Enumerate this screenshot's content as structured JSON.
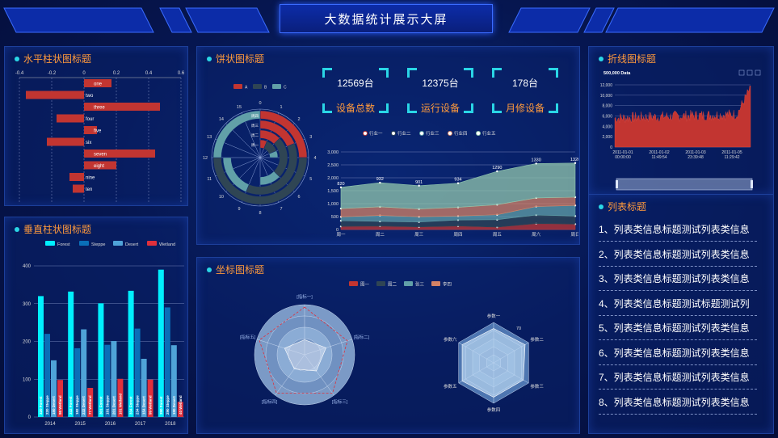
{
  "header": {
    "title": "大数据统计展示大屏"
  },
  "panels": {
    "hbar_title": "水平柱状图标题",
    "vbar_title": "垂直柱状图标题",
    "pie_title": "饼状图标题",
    "coord_title": "坐标图标题",
    "line_title": "折线图标题",
    "list_title": "列表标题"
  },
  "stats": [
    {
      "value": "12569台",
      "label": "设备总数"
    },
    {
      "value": "12375台",
      "label": "运行设备"
    },
    {
      "value": "178台",
      "label": "月修设备"
    }
  ],
  "list_items": [
    "1、列表类信息标题测试列表类信息",
    "2、列表类信息标题测试列表类信息",
    "3、列表类信息标题测试列表类信息",
    "4、列表类信息标题测试标题测试列",
    "5、列表类信息标题测试列表类信息",
    "6、列表类信息标题测试列表类信息",
    "7、列表类信息标题测试列表类信息",
    "8、列表类信息标题测试列表类信息"
  ],
  "chart_data": [
    {
      "id": "hbar",
      "type": "bar",
      "orientation": "horizontal",
      "categories": [
        "one",
        "two",
        "three",
        "four",
        "five",
        "six",
        "seven",
        "eight",
        "nine",
        "ten"
      ],
      "values": [
        0.17,
        -0.36,
        0.47,
        -0.17,
        0.08,
        -0.23,
        0.44,
        0.2,
        -0.09,
        -0.07
      ],
      "xticks": [
        "-0.4",
        "-0.2",
        "0",
        "0.2",
        "0.4",
        "0.6"
      ],
      "xlim": [
        -0.4,
        0.6
      ],
      "bar_color": "#c23531"
    },
    {
      "id": "vbar",
      "type": "bar",
      "categories": [
        "2014",
        "2015",
        "2016",
        "2017",
        "2018"
      ],
      "series": [
        {
          "name": "Forest",
          "values": [
            320,
            332,
            301,
            334,
            390
          ],
          "color": "#00f0ff"
        },
        {
          "name": "Steppe",
          "values": [
            220,
            182,
            191,
            234,
            290
          ],
          "color": "#0a6fb8"
        },
        {
          "name": "Desert",
          "values": [
            150,
            232,
            201,
            154,
            190
          ],
          "color": "#4fa3d8"
        },
        {
          "name": "Wetland",
          "values": [
            98,
            77,
            101,
            99,
            40
          ],
          "color": "#e0303c"
        }
      ],
      "yticks": [
        "0",
        "100",
        "200",
        "300",
        "400"
      ],
      "ylim": [
        0,
        400
      ]
    },
    {
      "id": "polar",
      "type": "bar",
      "coordinate": "polar",
      "legend": [
        "A",
        "B",
        "C"
      ],
      "colors": [
        "#c23531",
        "#2f4554",
        "#61a0a8"
      ],
      "angle_ticks": [
        "0",
        "1",
        "2",
        "3",
        "4",
        "5",
        "6",
        "7",
        "8",
        "9",
        "10",
        "11",
        "12",
        "13",
        "14",
        "15"
      ],
      "radial_labels": [
        "周一",
        "周二",
        "周三",
        "周四"
      ],
      "series": [
        {
          "name": "A",
          "values": [
            1,
            2,
            3,
            4
          ]
        },
        {
          "name": "B",
          "values": [
            2,
            4,
            6,
            8
          ]
        },
        {
          "name": "C",
          "values": [
            1,
            2,
            3,
            4
          ]
        }
      ]
    },
    {
      "id": "area",
      "type": "area",
      "stacked": true,
      "legend": [
        "行业一",
        "行业二",
        "行业三",
        "行业四",
        "行业五"
      ],
      "categories": [
        "周一",
        "周二",
        "周三",
        "周四",
        "周五",
        "周六",
        "周日"
      ],
      "series": [
        {
          "name": "行业一",
          "values": [
            120,
            132,
            101,
            134,
            90,
            230,
            210
          ],
          "color": "#c23531"
        },
        {
          "name": "行业二",
          "values": [
            220,
            182,
            191,
            234,
            290,
            330,
            310
          ],
          "color": "#2f4554"
        },
        {
          "name": "行业三",
          "values": [
            150,
            232,
            201,
            154,
            190,
            330,
            410
          ],
          "color": "#61a0a8"
        },
        {
          "name": "行业四",
          "values": [
            320,
            332,
            301,
            334,
            390,
            330,
            320
          ],
          "color": "#d48265"
        },
        {
          "name": "行业五",
          "values": [
            820,
            932,
            901,
            934,
            1290,
            1330,
            1320
          ],
          "color": "#91c7ae"
        }
      ],
      "top_labels": [
        "820",
        "932",
        "901",
        "934",
        "1290",
        "1330",
        "1320"
      ],
      "yticks": [
        "0",
        "500",
        "1,000",
        "1,500",
        "2,000",
        "2,500",
        "3,000"
      ],
      "ylim": [
        0,
        3000
      ]
    },
    {
      "id": "radar1",
      "type": "radar",
      "shape": "circle",
      "legend": [
        "图一",
        "图二",
        "张三",
        "李四"
      ],
      "indicators": [
        "[指标一]",
        "[指标二]",
        "[指标三]",
        "[指标四]",
        "[指标五]"
      ]
    },
    {
      "id": "radar2",
      "type": "radar",
      "shape": "polygon",
      "indicators": [
        "参数一",
        "参数二",
        "参数三",
        "参数四",
        "参数五",
        "参数六"
      ],
      "max_label": "70"
    },
    {
      "id": "line",
      "type": "area",
      "title": "500,000 Data",
      "yticks": [
        "0",
        "2,000",
        "4,000",
        "6,000",
        "8,000",
        "10,000",
        "12,000"
      ],
      "ylim": [
        0,
        12000
      ],
      "xticks": [
        "2011-01-01\n00:00:00",
        "2011-01-02\n11:49:54",
        "2011-01-03\n23:39:48",
        "2011-01-05\n11:29:42"
      ],
      "color": "#c23531"
    }
  ]
}
